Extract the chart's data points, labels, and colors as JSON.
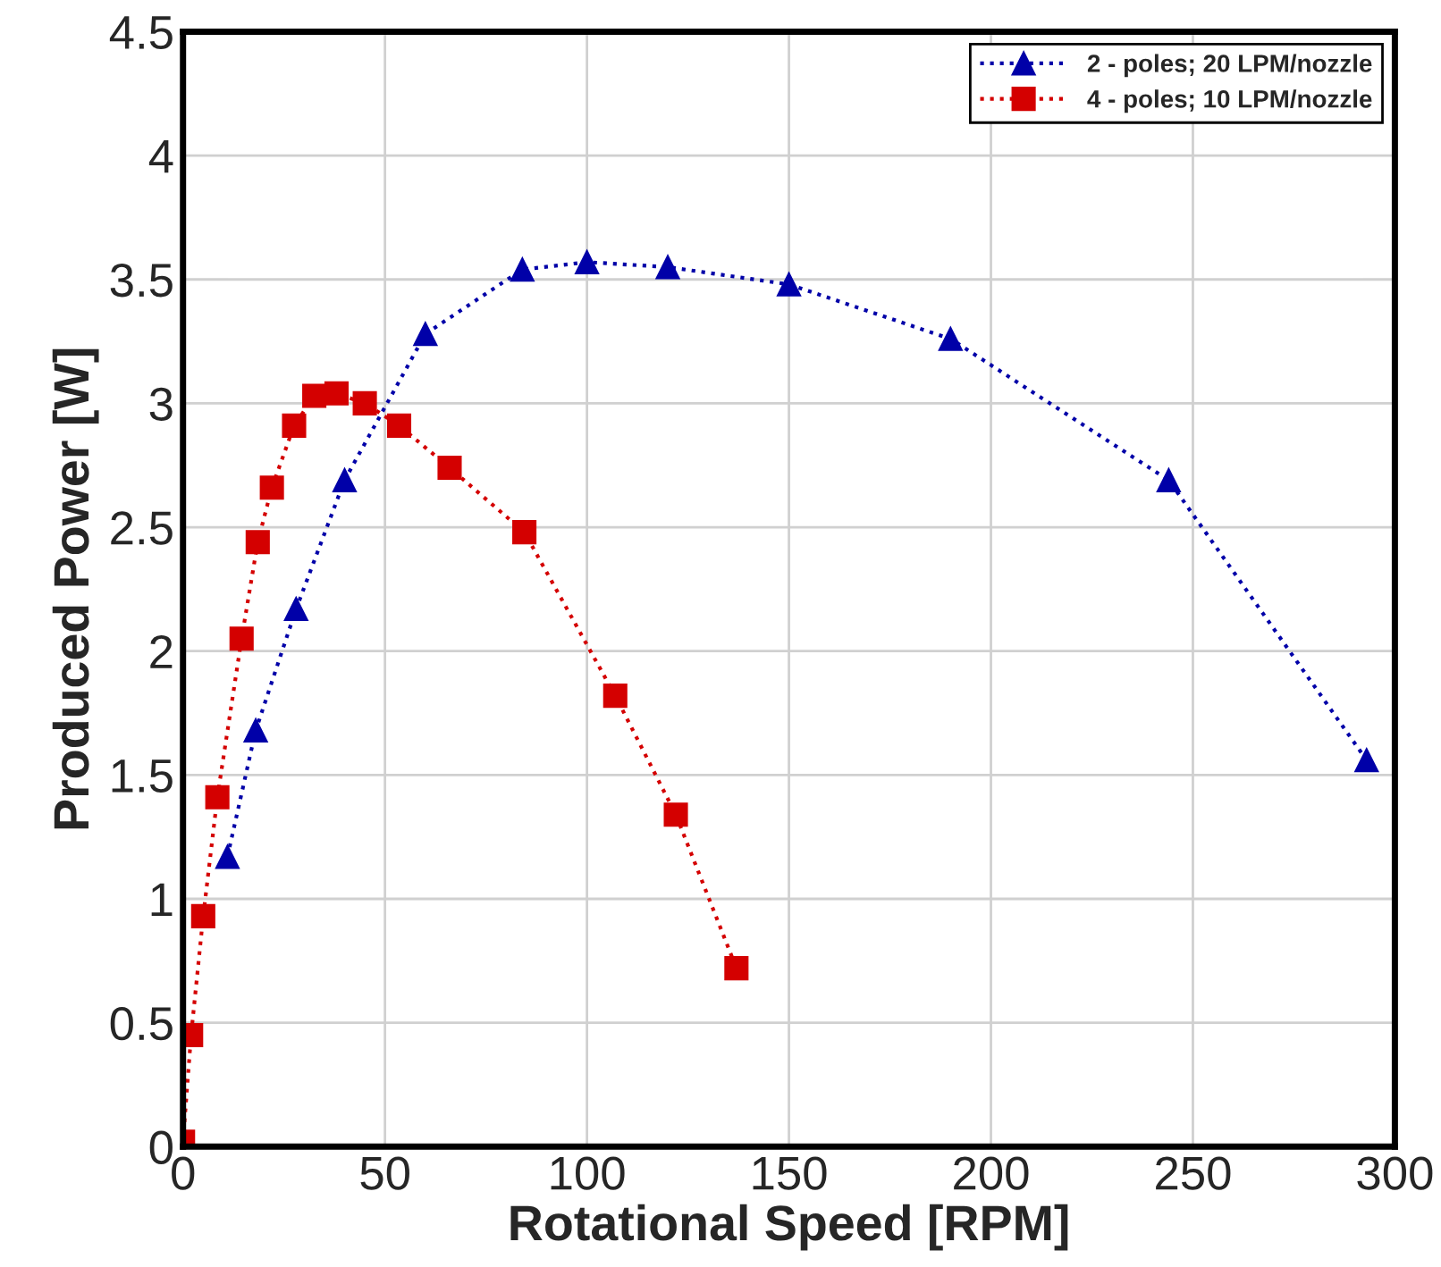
{
  "chart_data": {
    "type": "line",
    "xlabel": "Rotational Speed [RPM]",
    "ylabel": "Produced Power [W]",
    "xlim": [
      0,
      300
    ],
    "xticks": [
      0,
      50,
      100,
      150,
      200,
      250,
      300
    ],
    "ylim": [
      0,
      4.5
    ],
    "yticks": [
      0,
      0.5,
      1,
      1.5,
      2,
      2.5,
      3,
      3.5,
      4,
      4.5
    ],
    "grid": true,
    "legend": "top right",
    "line_style": "dotted",
    "series": [
      {
        "name": "2 - poles; 20 LPM/nozzle",
        "color": "#0000a8",
        "marker": "triangle",
        "x": [
          11,
          18,
          28,
          40,
          60,
          84,
          100,
          120,
          150,
          190,
          244,
          293
        ],
        "values": [
          1.17,
          1.68,
          2.17,
          2.69,
          3.28,
          3.54,
          3.57,
          3.55,
          3.48,
          3.26,
          2.69,
          1.56
        ]
      },
      {
        "name": "4 - poles; 10 LPM/nozzle",
        "color": "#d40000",
        "marker": "square",
        "x": [
          0,
          2,
          5,
          8.5,
          14.5,
          18.5,
          22,
          27.5,
          32.5,
          38,
          45,
          53.5,
          66,
          84.5,
          107,
          122,
          137
        ],
        "values": [
          0.02,
          0.45,
          0.93,
          1.41,
          2.05,
          2.44,
          2.66,
          2.91,
          3.03,
          3.04,
          3.0,
          2.91,
          2.74,
          2.48,
          1.82,
          1.34,
          0.72
        ]
      }
    ]
  }
}
